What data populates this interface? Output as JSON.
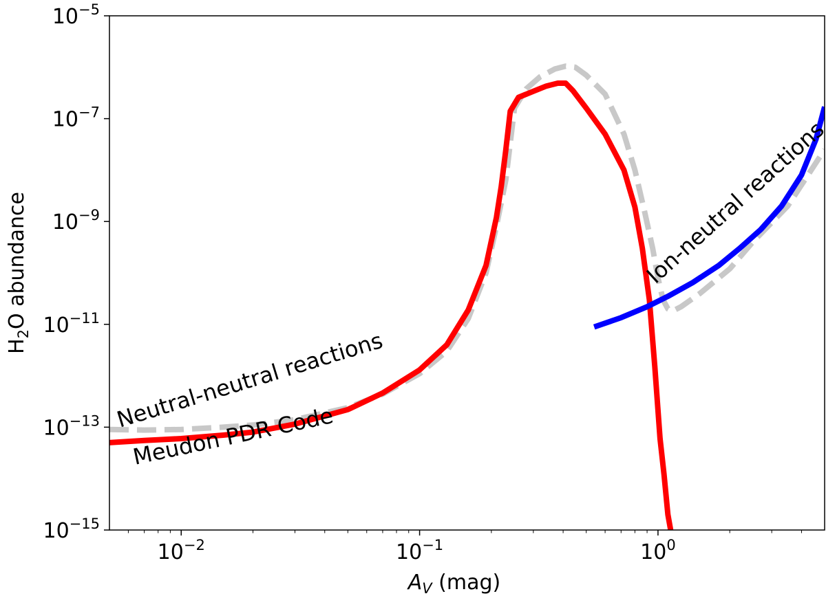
{
  "chart_data": {
    "type": "line",
    "title": "",
    "xlabel": {
      "main": "A",
      "sub": "V",
      "rest": " (mag)"
    },
    "ylabel": {
      "pre": "H",
      "sub": "2",
      "post": "O abundance"
    },
    "xscale": "log",
    "yscale": "log",
    "xlim": [
      0.005,
      5.0
    ],
    "ylim": [
      1e-15,
      1e-05
    ],
    "x_ticks": [
      {
        "value": 0.01,
        "base": "10",
        "exp": "−2"
      },
      {
        "value": 0.1,
        "base": "10",
        "exp": "−1"
      },
      {
        "value": 1,
        "base": "10",
        "exp": "0"
      }
    ],
    "y_ticks": [
      {
        "value": 1e-15,
        "base": "10",
        "exp": "−15"
      },
      {
        "value": 1e-13,
        "base": "10",
        "exp": "−13"
      },
      {
        "value": 1e-11,
        "base": "10",
        "exp": "−11"
      },
      {
        "value": 1e-09,
        "base": "10",
        "exp": "−9"
      },
      {
        "value": 1e-07,
        "base": "10",
        "exp": "−7"
      },
      {
        "value": 1e-05,
        "base": "10",
        "exp": "−5"
      }
    ],
    "series": [
      {
        "name": "Meudon PDR Code",
        "color": "#c8c8c8",
        "style": "dashed",
        "x": [
          0.005,
          0.007,
          0.01,
          0.015,
          0.02,
          0.03,
          0.05,
          0.07,
          0.1,
          0.13,
          0.16,
          0.19,
          0.21,
          0.23,
          0.25,
          0.28,
          0.32,
          0.37,
          0.41,
          0.45,
          0.5,
          0.6,
          0.72,
          0.8,
          0.88,
          0.95,
          1.0,
          1.05,
          1.1,
          1.15,
          1.25,
          1.5,
          2.0,
          2.5,
          3.5,
          5.0
        ],
        "y": [
          9e-14,
          8.8e-14,
          9e-14,
          1e-13,
          1.1e-13,
          1.4e-13,
          2.4e-13,
          4.4e-13,
          1.1e-12,
          3e-12,
          1.3e-11,
          1e-10,
          8e-10,
          6.5e-09,
          1.6e-07,
          3.8e-07,
          6.5e-07,
          9.3e-07,
          1.05e-06,
          1e-06,
          7e-07,
          3e-07,
          5e-08,
          1e-08,
          1.5e-09,
          3e-10,
          8e-11,
          3e-11,
          2e-11,
          1.8e-11,
          2.2e-11,
          4e-11,
          1.2e-10,
          4e-10,
          2e-09,
          2.5e-08
        ]
      },
      {
        "name": "Neutral-neutral reactions",
        "color": "#ff0000",
        "style": "solid",
        "x": [
          0.005,
          0.007,
          0.01,
          0.015,
          0.02,
          0.03,
          0.05,
          0.07,
          0.1,
          0.13,
          0.16,
          0.19,
          0.21,
          0.22,
          0.23,
          0.24,
          0.26,
          0.3,
          0.34,
          0.38,
          0.41,
          0.44,
          0.5,
          0.6,
          0.72,
          0.8,
          0.86,
          0.92,
          0.97,
          1.02,
          1.06,
          1.1,
          1.13
        ],
        "y": [
          5e-14,
          5.5e-14,
          6e-14,
          7e-14,
          8e-14,
          1.15e-13,
          2.2e-13,
          4.6e-13,
          1.3e-12,
          4e-12,
          1.9e-11,
          1.4e-10,
          1.2e-09,
          4.8e-09,
          2.5e-08,
          1.4e-07,
          2.6e-07,
          3.4e-07,
          4.3e-07,
          4.9e-07,
          4.9e-07,
          3.5e-07,
          1.6e-07,
          5e-08,
          1e-08,
          1.9e-09,
          3e-10,
          3e-11,
          1.5e-12,
          6e-14,
          1.2e-14,
          2e-15,
          1e-15
        ]
      },
      {
        "name": "Ion-neutral reactions",
        "color": "#0000ff",
        "style": "solid",
        "x": [
          0.54,
          0.7,
          0.9,
          1.1,
          1.4,
          1.8,
          2.2,
          2.7,
          3.3,
          4.0,
          4.6,
          5.0
        ],
        "y": [
          8.9e-12,
          1.35e-11,
          2.2e-11,
          3.5e-11,
          6.5e-11,
          1.4e-10,
          3e-10,
          7e-10,
          2e-09,
          8e-09,
          4e-08,
          1.7e-07
        ]
      }
    ],
    "annotations": [
      {
        "text": "Neutral-neutral reactions",
        "color": "#ff0000"
      },
      {
        "text": "Meudon PDR Code",
        "color": "#c8c8c8"
      },
      {
        "text": "Ion-neutral reactions",
        "color": "#0000ff"
      }
    ]
  }
}
